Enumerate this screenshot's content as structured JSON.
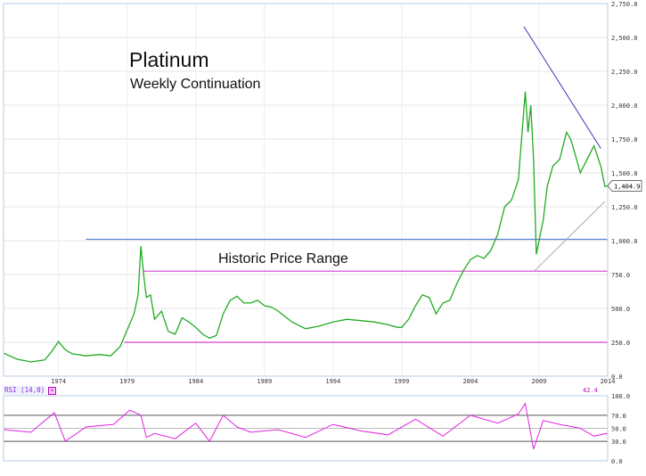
{
  "chart_data": [
    {
      "type": "line",
      "title": "Platinum",
      "subtitle": "Weekly Continuation",
      "x_ticks": [
        "1974",
        "1979",
        "1984",
        "1989",
        "1994",
        "1999",
        "2004",
        "2009",
        "2014"
      ],
      "y_ticks": [
        "0.0",
        "250.0",
        "500.0",
        "750.0",
        "1,000.0",
        "1,250.0",
        "1,500.0",
        "1,750.0",
        "2,000.0",
        "2,250.0",
        "2,500.0",
        "2,750.0"
      ],
      "ylim": [
        0,
        2750
      ],
      "xlim": [
        1970.0,
        2014.0
      ],
      "last_price_label": "1,404.9",
      "last_price": 1404.9,
      "series": [
        {
          "color": "#22aa22",
          "x": [
            1970.0,
            1971.0,
            1972.0,
            1973.0,
            1973.5,
            1974.0,
            1974.5,
            1975.0,
            1976.0,
            1977.0,
            1977.8,
            1978.5,
            1979.0,
            1979.5,
            1979.8,
            1980.0,
            1980.2,
            1980.4,
            1980.7,
            1981.0,
            1981.5,
            1982.0,
            1982.5,
            1983.0,
            1983.5,
            1984.0,
            1984.5,
            1985.0,
            1985.5,
            1986.0,
            1986.5,
            1987.0,
            1987.5,
            1988.0,
            1988.5,
            1989.0,
            1989.5,
            1990.0,
            1991.0,
            1992.0,
            1993.0,
            1994.0,
            1995.0,
            1996.0,
            1997.0,
            1998.0,
            1998.7,
            1999.0,
            1999.5,
            2000.0,
            2000.5,
            2001.0,
            2001.5,
            2002.0,
            2002.5,
            2003.0,
            2003.5,
            2004.0,
            2004.5,
            2005.0,
            2005.5,
            2006.0,
            2006.5,
            2007.0,
            2007.5,
            2008.0,
            2008.2,
            2008.4,
            2008.6,
            2008.8,
            2009.0,
            2009.3,
            2009.6,
            2010.0,
            2010.5,
            2011.0,
            2011.3,
            2011.6,
            2012.0,
            2012.5,
            2013.0,
            2013.5,
            2013.8,
            2014.0
          ],
          "y": [
            170,
            125,
            105,
            120,
            180,
            255,
            195,
            165,
            150,
            160,
            150,
            220,
            340,
            460,
            600,
            960,
            750,
            580,
            600,
            420,
            480,
            330,
            310,
            430,
            400,
            360,
            310,
            280,
            300,
            460,
            560,
            590,
            540,
            540,
            560,
            520,
            510,
            480,
            400,
            350,
            370,
            400,
            420,
            410,
            400,
            380,
            360,
            360,
            420,
            520,
            600,
            580,
            460,
            540,
            560,
            680,
            780,
            860,
            890,
            870,
            930,
            1050,
            1250,
            1300,
            1450,
            2100,
            1800,
            2000,
            1600,
            900,
            1000,
            1150,
            1400,
            1550,
            1600,
            1800,
            1750,
            1650,
            1500,
            1600,
            1700,
            1550,
            1400,
            1404.9
          ]
        }
      ],
      "annotations": [
        {
          "type": "hline",
          "value": 1010,
          "from": 1976.0,
          "to": 2014.0,
          "color": "#5b86d8"
        },
        {
          "type": "hline",
          "value": 775,
          "from": 1980.2,
          "to": 2014.0,
          "color": "#d040d0"
        },
        {
          "type": "hline",
          "value": 250,
          "from": 1978.8,
          "to": 2014.0,
          "color": "#d040d0"
        },
        {
          "type": "segment",
          "from": [
            2007.9,
            2580
          ],
          "to": [
            2013.5,
            1680
          ],
          "color": "#3838b0"
        },
        {
          "type": "segment",
          "from": [
            2008.7,
            780
          ],
          "to": [
            2013.8,
            1290
          ],
          "color": "#aaaaaa"
        }
      ],
      "range_label": "Historic Price Range"
    },
    {
      "type": "line",
      "title": "RSI (14,0)",
      "value_label": "42.4",
      "xlim": [
        1970.0,
        2014.0
      ],
      "ylim": [
        0,
        100
      ],
      "y_ticks": [
        "0.0",
        "30.0",
        "50.0",
        "70.0",
        "100.0"
      ],
      "reference_lines": [
        30,
        50,
        70
      ],
      "series": [
        {
          "color": "#e020e0",
          "x": [
            1970.0,
            1972.0,
            1973.7,
            1974.5,
            1976.0,
            1978.0,
            1979.2,
            1980.0,
            1980.4,
            1981.0,
            1982.5,
            1984.0,
            1985.0,
            1986.0,
            1987.0,
            1988.0,
            1990.0,
            1992.0,
            1994.0,
            1996.0,
            1998.0,
            2000.0,
            2002.0,
            2004.0,
            2006.0,
            2007.5,
            2008.0,
            2008.6,
            2009.3,
            2010.5,
            2012.0,
            2013.0,
            2014.0
          ],
          "y": [
            48,
            44,
            74,
            30,
            52,
            56,
            78,
            70,
            36,
            42,
            34,
            58,
            30,
            70,
            52,
            44,
            48,
            36,
            56,
            46,
            40,
            64,
            38,
            70,
            58,
            72,
            88,
            18,
            62,
            56,
            50,
            38,
            42.4
          ]
        }
      ]
    }
  ]
}
